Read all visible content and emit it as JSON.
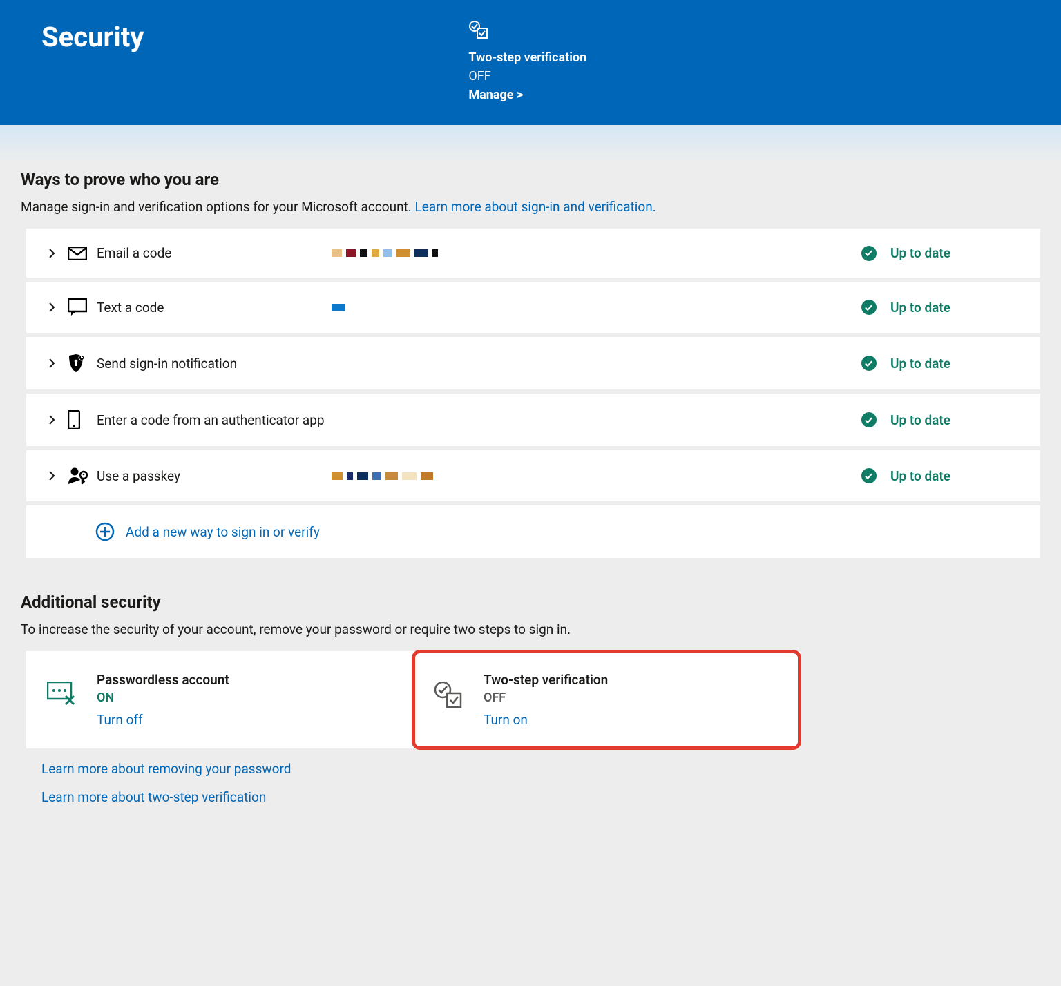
{
  "header": {
    "title": "Security",
    "tsv_title": "Two-step verification",
    "tsv_value": "OFF",
    "manage_label": "Manage >"
  },
  "prove": {
    "heading": "Ways to prove who you are",
    "desc_text": "Manage sign-in and verification options for your Microsoft account. ",
    "learn_link": "Learn more about sign-in and verification.",
    "status_text": "Up to date",
    "methods": [
      {
        "label": "Email a code",
        "redact_colors": [
          "#e9bf8a",
          "#8a1524",
          "#0f0f0f",
          "#e0a93f",
          "#8fc0ea",
          "#d08f2e",
          "#0d2f5b",
          "#0f0f0f"
        ]
      },
      {
        "label": "Text a code",
        "redact_colors": [
          "#0d78c9"
        ]
      },
      {
        "label": "Send sign-in notification",
        "redact_colors": []
      },
      {
        "label": "Enter a code from an authenticator app",
        "redact_colors": []
      },
      {
        "label": "Use a passkey",
        "redact_colors": [
          "#d08f2e",
          "#1b2a6b",
          "#0d2f5b",
          "#3a6fb0",
          "#c78a3d",
          "#f2e2c0",
          "#c07a2a"
        ]
      }
    ],
    "add_label": "Add a new way to sign in or verify"
  },
  "additional": {
    "heading": "Additional security",
    "desc_text": "To increase the security of your account, remove your password or require two steps to sign in.",
    "cards": [
      {
        "title": "Passwordless account",
        "status": "ON",
        "status_class": "on",
        "action": "Turn off"
      },
      {
        "title": "Two-step verification",
        "status": "OFF",
        "status_class": "off",
        "action": "Turn on"
      }
    ],
    "link1": "Learn more about removing your password",
    "link2": "Learn more about two-step verification"
  },
  "colors": {
    "primary": "#0067b8",
    "success": "#107c66",
    "highlight_border": "#e23b2e"
  }
}
